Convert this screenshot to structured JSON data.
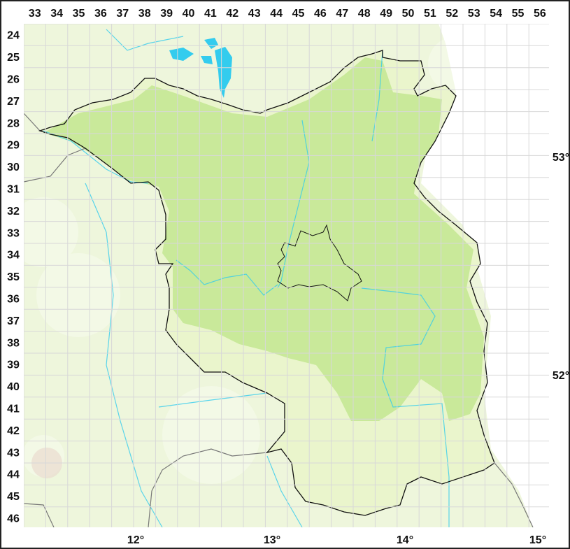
{
  "grid": {
    "columns": [
      "33",
      "34",
      "35",
      "36",
      "37",
      "38",
      "39",
      "40",
      "41",
      "42",
      "43",
      "44",
      "45",
      "46",
      "47",
      "48",
      "49",
      "50",
      "51",
      "52",
      "53",
      "54",
      "55",
      "56"
    ],
    "rows": [
      "24",
      "25",
      "26",
      "27",
      "28",
      "29",
      "30",
      "31",
      "32",
      "33",
      "34",
      "35",
      "36",
      "37",
      "38",
      "39",
      "40",
      "41",
      "42",
      "43",
      "44",
      "45",
      "46"
    ]
  },
  "longitude_labels": [
    "12°",
    "13°",
    "14°",
    "15°"
  ],
  "latitude_labels": [
    "53°",
    "52°"
  ],
  "colors": {
    "background": "#eef6dc",
    "region_light": "#eaf5cc",
    "region_dense": "#c9e99a",
    "water": "#33ccee",
    "border": "#111111",
    "grid": "#d8d8d8"
  }
}
